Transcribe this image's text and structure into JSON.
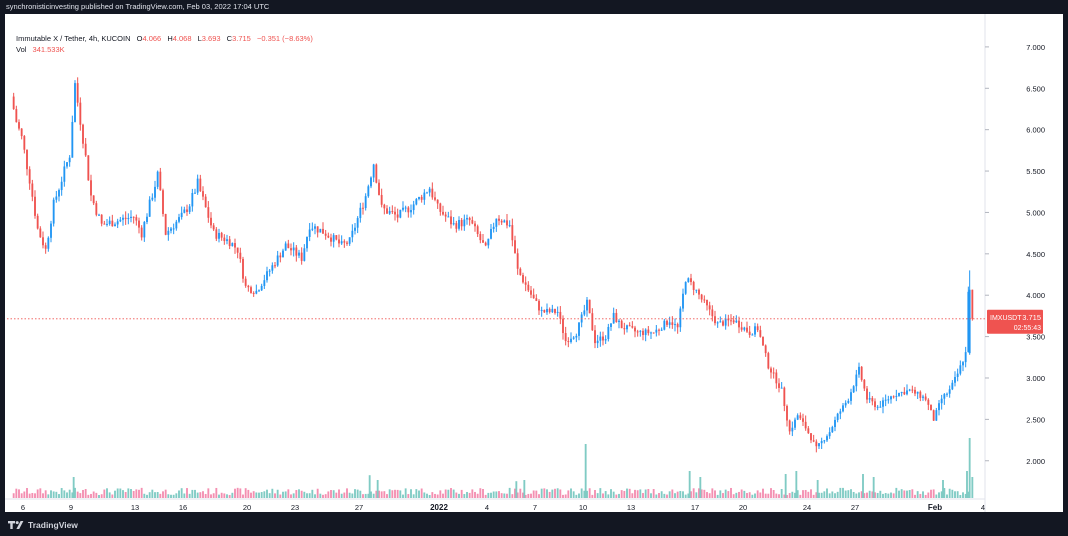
{
  "header": {
    "publisher_line": "synchronisticinvesting published on TradingView.com, Feb 03, 2022 17:04 UTC"
  },
  "legend": {
    "symbol": "Immutable X / Tether, 4h, KUCOIN",
    "open_label": "O",
    "open": "4.066",
    "high_label": "H",
    "high": "4.068",
    "low_label": "L",
    "low": "3.693",
    "close_label": "C",
    "close": "3.715",
    "change": "−0.351 (−8.63%)",
    "vol_label": "Vol",
    "vol": "341.533K"
  },
  "footer": {
    "brand": "TradingView"
  },
  "colors": {
    "up": "#2196f3",
    "down": "#ef5350",
    "vol_up": "#80cbc4",
    "vol_down": "#f48fb1",
    "price_tag": "#ef5350",
    "axis_text": "#131722"
  },
  "chart_data": {
    "type": "candlestick",
    "timeframe": "4h",
    "y_axis": {
      "ticks": [
        "7.000",
        "6.500",
        "6.000",
        "5.500",
        "5.000",
        "4.500",
        "4.000",
        "3.500",
        "3.000",
        "2.500",
        "2.000"
      ],
      "range": [
        1.55,
        7.18
      ],
      "position": "right"
    },
    "x_axis": {
      "ticks": [
        "6",
        "9",
        "13",
        "16",
        "20",
        "23",
        "27",
        "2022",
        "4",
        "7",
        "10",
        "13",
        "17",
        "20",
        "24",
        "27",
        "Feb",
        "4"
      ],
      "range_start_date": "2021-12-05",
      "range_end_date": "2022-02-04"
    },
    "last_price": {
      "symbol": "IMXUSDT",
      "price": "3.715",
      "countdown": "02:55:43",
      "value": 3.715
    },
    "close_path": [
      [
        "2021-12-05T08",
        6.4
      ],
      [
        "2021-12-05T16",
        6.1
      ],
      [
        "2021-12-06T00",
        5.9
      ],
      [
        "2021-12-06T12",
        5.4
      ],
      [
        "2021-12-07T00",
        4.8
      ],
      [
        "2021-12-07T12",
        4.55
      ],
      [
        "2021-12-08T00",
        5.1
      ],
      [
        "2021-12-08T12",
        5.4
      ],
      [
        "2021-12-09T00",
        5.7
      ],
      [
        "2021-12-09T08",
        6.55
      ],
      [
        "2021-12-09T20",
        5.9
      ],
      [
        "2021-12-10T08",
        5.2
      ],
      [
        "2021-12-11T00",
        4.85
      ],
      [
        "2021-12-12T00",
        4.9
      ],
      [
        "2021-12-13T00",
        4.95
      ],
      [
        "2021-12-13T12",
        4.75
      ],
      [
        "2021-12-14T12",
        5.45
      ],
      [
        "2021-12-15T00",
        4.75
      ],
      [
        "2021-12-16T00",
        4.95
      ],
      [
        "2021-12-16T12",
        5.1
      ],
      [
        "2021-12-17T00",
        5.35
      ],
      [
        "2021-12-18T00",
        4.75
      ],
      [
        "2021-12-19T00",
        4.65
      ],
      [
        "2021-12-19T12",
        4.55
      ],
      [
        "2021-12-20T00",
        4.1
      ],
      [
        "2021-12-20T16",
        4.05
      ],
      [
        "2021-12-21T12",
        4.3
      ],
      [
        "2021-12-22T12",
        4.6
      ],
      [
        "2021-12-23T12",
        4.45
      ],
      [
        "2021-12-24T00",
        4.85
      ],
      [
        "2021-12-25T00",
        4.75
      ],
      [
        "2021-12-26T00",
        4.6
      ],
      [
        "2021-12-26T12",
        4.65
      ],
      [
        "2021-12-27T12",
        5.2
      ],
      [
        "2021-12-28T00",
        5.6
      ],
      [
        "2021-12-28T12",
        5.05
      ],
      [
        "2021-12-29T12",
        4.95
      ],
      [
        "2021-12-30T12",
        5.1
      ],
      [
        "2021-12-31T12",
        5.3
      ],
      [
        "2022-01-01T00",
        5.05
      ],
      [
        "2022-01-02T00",
        4.85
      ],
      [
        "2022-01-03T00",
        4.9
      ],
      [
        "2022-01-04T00",
        4.55
      ],
      [
        "2022-01-04T16",
        4.95
      ],
      [
        "2022-01-05T12",
        4.85
      ],
      [
        "2022-01-06T00",
        4.3
      ],
      [
        "2022-01-07T00",
        3.95
      ],
      [
        "2022-01-07T12",
        3.8
      ],
      [
        "2022-01-08T12",
        3.8
      ],
      [
        "2022-01-09T00",
        3.45
      ],
      [
        "2022-01-09T16",
        3.55
      ],
      [
        "2022-01-10T08",
        3.9
      ],
      [
        "2022-01-10T20",
        3.45
      ],
      [
        "2022-01-11T12",
        3.5
      ],
      [
        "2022-01-12T00",
        3.75
      ],
      [
        "2022-01-12T12",
        3.62
      ],
      [
        "2022-01-13T12",
        3.55
      ],
      [
        "2022-01-14T12",
        3.55
      ],
      [
        "2022-01-15T12",
        3.7
      ],
      [
        "2022-01-16T00",
        3.6
      ],
      [
        "2022-01-16T12",
        4.2
      ],
      [
        "2022-01-17T00",
        4.1
      ],
      [
        "2022-01-17T12",
        3.95
      ],
      [
        "2022-01-18T12",
        3.65
      ],
      [
        "2022-01-19T12",
        3.7
      ],
      [
        "2022-01-20T12",
        3.55
      ],
      [
        "2022-01-21T00",
        3.6
      ],
      [
        "2022-01-21T16",
        3.15
      ],
      [
        "2022-01-22T12",
        2.85
      ],
      [
        "2022-01-23T00",
        2.35
      ],
      [
        "2022-01-23T12",
        2.55
      ],
      [
        "2022-01-24T00",
        2.4
      ],
      [
        "2022-01-24T16",
        2.15
      ],
      [
        "2022-01-25T12",
        2.35
      ],
      [
        "2022-01-26T00",
        2.55
      ],
      [
        "2022-01-26T16",
        2.75
      ],
      [
        "2022-01-27T08",
        3.1
      ],
      [
        "2022-01-27T20",
        2.75
      ],
      [
        "2022-01-28T12",
        2.65
      ],
      [
        "2022-01-29T12",
        2.8
      ],
      [
        "2022-01-30T12",
        2.85
      ],
      [
        "2022-01-31T12",
        2.75
      ],
      [
        "2022-02-01T00",
        2.5
      ],
      [
        "2022-02-01T12",
        2.75
      ],
      [
        "2022-02-02T00",
        2.85
      ],
      [
        "2022-02-02T12",
        3.05
      ],
      [
        "2022-02-03T00",
        3.3
      ],
      [
        "2022-02-03T04",
        4.066
      ],
      [
        "2022-02-03T08",
        3.715
      ]
    ],
    "last_candle": {
      "open": 4.066,
      "high": 4.068,
      "low": 3.693,
      "close": 3.715
    },
    "volume": {
      "last": "341.533K",
      "spikes": [
        [
          "2021-12-09T04",
          0.35
        ],
        [
          "2021-12-27T16",
          0.38
        ],
        [
          "2021-12-28T04",
          0.3
        ],
        [
          "2022-01-05T20",
          0.28
        ],
        [
          "2022-01-06T08",
          0.3
        ],
        [
          "2022-01-10T04",
          0.9
        ],
        [
          "2022-01-16T16",
          0.45
        ],
        [
          "2022-01-17T08",
          0.35
        ],
        [
          "2022-01-22T16",
          0.4
        ],
        [
          "2022-01-23T08",
          0.45
        ],
        [
          "2022-01-24T16",
          0.3
        ],
        [
          "2022-01-27T12",
          0.4
        ],
        [
          "2022-01-28T04",
          0.35
        ],
        [
          "2022-02-01T12",
          0.3
        ],
        [
          "2022-02-03T00",
          0.45
        ],
        [
          "2022-02-03T04",
          1.0
        ],
        [
          "2022-02-03T08",
          0.35
        ]
      ]
    }
  }
}
